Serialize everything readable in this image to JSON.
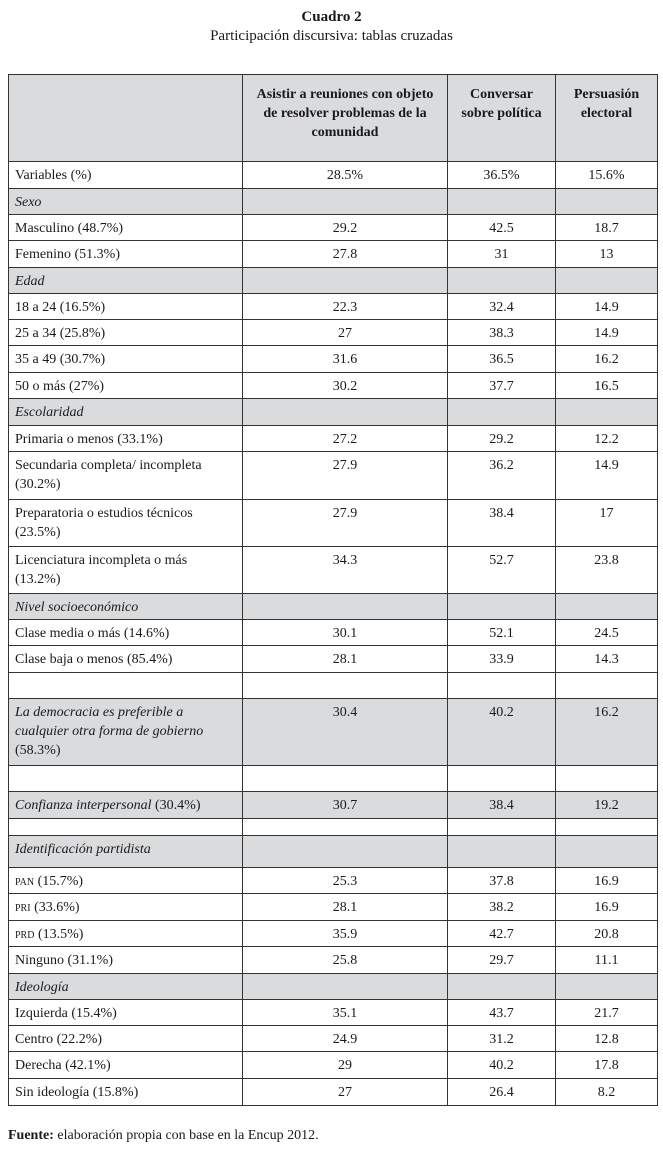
{
  "caption": {
    "title": "Cuadro 2",
    "subtitle": "Participación discursiva: tablas cruzadas"
  },
  "headers": [
    "",
    "Asistir a reuniones con objeto de resolver problemas de la comunidad",
    "Conversar sobre política",
    "Persuasión electoral"
  ],
  "variables": {
    "label": "Variables (%)",
    "values": [
      "28.5%",
      "36.5%",
      "15.6%"
    ]
  },
  "sexo": {
    "title": "Sexo",
    "rows": [
      {
        "label": "Masculino (48.7%)",
        "values": [
          "29.2",
          "42.5",
          "18.7"
        ]
      },
      {
        "label": "Femenino (51.3%)",
        "values": [
          "27.8",
          "31",
          "13"
        ]
      }
    ]
  },
  "edad": {
    "title": "Edad",
    "rows": [
      {
        "label": "18 a 24 (16.5%)",
        "values": [
          "22.3",
          "32.4",
          "14.9"
        ]
      },
      {
        "label": "25 a 34 (25.8%)",
        "values": [
          "27",
          "38.3",
          "14.9"
        ]
      },
      {
        "label": "35 a 49 (30.7%)",
        "values": [
          "31.6",
          "36.5",
          "16.2"
        ]
      },
      {
        "label": "50 o más (27%)",
        "values": [
          "30.2",
          "37.7",
          "16.5"
        ]
      }
    ]
  },
  "escolaridad": {
    "title": "Escolaridad",
    "rows": [
      {
        "label": "Primaria o menos (33.1%)",
        "values": [
          "27.2",
          "29.2",
          "12.2"
        ]
      },
      {
        "label": "Secundaria completa/ incompleta (30.2%)",
        "values": [
          "27.9",
          "36.2",
          "14.9"
        ]
      },
      {
        "label": "Preparatoria o estudios técnicos (23.5%)",
        "values": [
          "27.9",
          "38.4",
          "17"
        ]
      },
      {
        "label": "Licenciatura incompleta o más (13.2%)",
        "values": [
          "34.3",
          "52.7",
          "23.8"
        ]
      }
    ]
  },
  "nivel": {
    "title": "Nivel socioeconómico",
    "rows": [
      {
        "label": "Clase media o más (14.6%)",
        "values": [
          "30.1",
          "52.1",
          "24.5"
        ]
      },
      {
        "label": "Clase baja o menos (85.4%)",
        "values": [
          "28.1",
          "33.9",
          "14.3"
        ]
      }
    ]
  },
  "democracia": {
    "label": "La democracia es preferible a cualquier otra forma de gobierno",
    "pct": "(58.3%)",
    "values": [
      "30.4",
      "40.2",
      "16.2"
    ]
  },
  "confianza": {
    "label": "Confianza interpersonal",
    "pct": "(30.4%)",
    "values": [
      "30.7",
      "38.4",
      "19.2"
    ]
  },
  "partidista": {
    "title": "Identificación partidista",
    "rows": [
      {
        "party": "pan",
        "pct": "(15.7%)",
        "values": [
          "25.3",
          "37.8",
          "16.9"
        ]
      },
      {
        "party": "pri",
        "pct": "(33.6%)",
        "values": [
          "28.1",
          "38.2",
          "16.9"
        ]
      },
      {
        "party": "prd",
        "pct": "(13.5%)",
        "values": [
          "35.9",
          "42.7",
          "20.8"
        ]
      },
      {
        "label": "Ninguno (31.1%)",
        "values": [
          "25.8",
          "29.7",
          "11.1"
        ]
      }
    ]
  },
  "ideologia": {
    "title": "Ideología",
    "rows": [
      {
        "label": "Izquierda (15.4%)",
        "values": [
          "35.1",
          "43.7",
          "21.7"
        ]
      },
      {
        "label": "Centro (22.2%)",
        "values": [
          "24.9",
          "31.2",
          "12.8"
        ]
      },
      {
        "label": "Derecha (42.1%)",
        "values": [
          "29",
          "40.2",
          "17.8"
        ]
      },
      {
        "label": "Sin ideología (15.8%)",
        "values": [
          "27",
          "26.4",
          "8.2"
        ]
      }
    ]
  },
  "footer": {
    "label": "Fuente:",
    "text": " elaboración propia con base en la Encup 2012."
  }
}
